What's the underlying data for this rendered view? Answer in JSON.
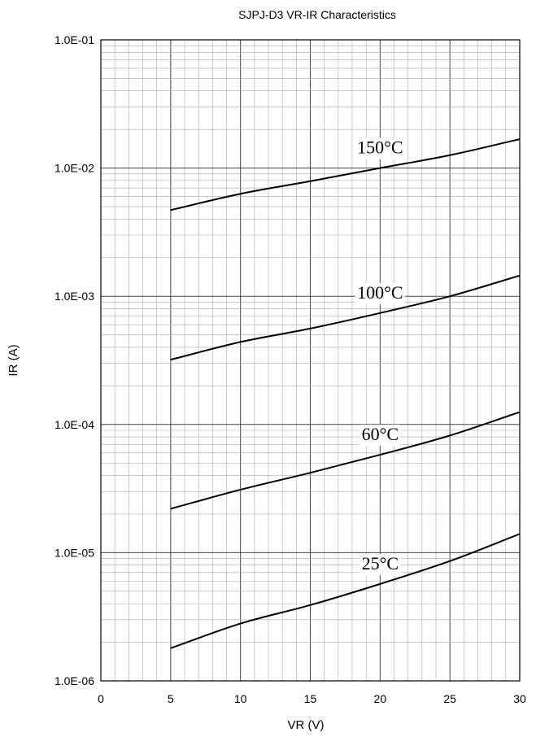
{
  "chart_data": {
    "type": "line",
    "title": "SJPJ-D3 VR-IR Characteristics",
    "xlabel": "VR (V)",
    "ylabel": "IR (A)",
    "xlim": [
      0,
      30
    ],
    "ylim": [
      1e-06,
      0.1
    ],
    "yscale": "log",
    "grid": true,
    "x_ticks": [
      "0",
      "5",
      "10",
      "15",
      "20",
      "25",
      "30"
    ],
    "y_ticks": [
      "1.0E-06",
      "1.0E-05",
      "1.0E-04",
      "1.0E-03",
      "1.0E-02",
      "1.0E-01"
    ],
    "line_color": "#000000",
    "series": [
      {
        "name": "150°C",
        "x": [
          5,
          10,
          15,
          20,
          25,
          30
        ],
        "values": [
          0.0047,
          0.0063,
          0.0079,
          0.01,
          0.0126,
          0.0168
        ]
      },
      {
        "name": "100°C",
        "x": [
          5,
          10,
          15,
          20,
          25,
          30
        ],
        "values": [
          0.00032,
          0.00044,
          0.00056,
          0.00074,
          0.001,
          0.00145
        ]
      },
      {
        "name": "60°C",
        "x": [
          5,
          10,
          15,
          20,
          25,
          30
        ],
        "values": [
          2.2e-05,
          3.1e-05,
          4.2e-05,
          5.8e-05,
          8.2e-05,
          0.000125
        ]
      },
      {
        "name": "25°C",
        "x": [
          5,
          10,
          15,
          20,
          25,
          30
        ],
        "values": [
          1.8e-06,
          2.8e-06,
          3.9e-06,
          5.7e-06,
          8.6e-06,
          1.4e-05
        ]
      }
    ]
  }
}
